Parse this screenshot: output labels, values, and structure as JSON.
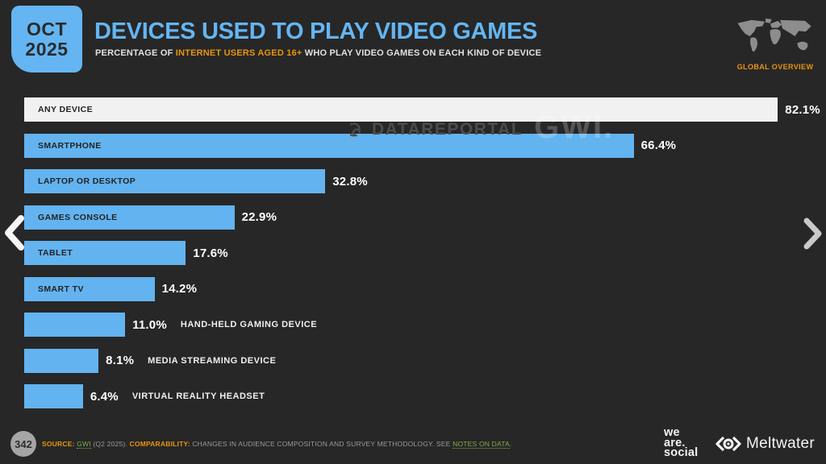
{
  "header": {
    "badge_month": "OCT",
    "badge_year": "2025",
    "title": "DEVICES USED TO PLAY VIDEO GAMES",
    "subtitle_prefix": "PERCENTAGE OF ",
    "subtitle_highlight": "INTERNET USERS AGED 16+",
    "subtitle_suffix": " WHO PLAY VIDEO GAMES ON EACH KIND OF DEVICE",
    "region_label": "GLOBAL OVERVIEW"
  },
  "watermark": {
    "brand": "DATAREPORTAL",
    "partner": "GWI."
  },
  "chart_data": {
    "type": "bar",
    "orientation": "horizontal",
    "title": "DEVICES USED TO PLAY VIDEO GAMES",
    "xlabel": "",
    "ylabel": "",
    "xlim": [
      0,
      85
    ],
    "grid": false,
    "legend": "none",
    "categories": [
      "ANY DEVICE",
      "SMARTPHONE",
      "LAPTOP OR DESKTOP",
      "GAMES CONSOLE",
      "TABLET",
      "SMART TV",
      "HAND-HELD GAMING DEVICE",
      "MEDIA STREAMING DEVICE",
      "VIRTUAL REALITY HEADSET"
    ],
    "values": [
      82.1,
      66.4,
      32.8,
      22.9,
      17.6,
      14.2,
      11.0,
      8.1,
      6.4
    ],
    "value_labels": [
      "82.1%",
      "66.4%",
      "32.8%",
      "22.9%",
      "17.6%",
      "14.2%",
      "11.0%",
      "8.1%",
      "6.4%"
    ],
    "bar_styles": [
      {
        "fill": "#f1f1f1",
        "text": "#232323",
        "label_position": "inside"
      },
      {
        "fill": "#63b3f0",
        "text": "#232323",
        "label_position": "inside"
      },
      {
        "fill": "#63b3f0",
        "text": "#232323",
        "label_position": "inside"
      },
      {
        "fill": "#63b3f0",
        "text": "#232323",
        "label_position": "inside"
      },
      {
        "fill": "#63b3f0",
        "text": "#232323",
        "label_position": "inside"
      },
      {
        "fill": "#63b3f0",
        "text": "#232323",
        "label_position": "inside"
      },
      {
        "fill": "#63b3f0",
        "text": "#232323",
        "label_position": "outside"
      },
      {
        "fill": "#63b3f0",
        "text": "#232323",
        "label_position": "outside"
      },
      {
        "fill": "#63b3f0",
        "text": "#232323",
        "label_position": "outside"
      }
    ]
  },
  "footer": {
    "page_number": "342",
    "source_label": "SOURCE: ",
    "source_link": "GWI",
    "source_mid": " (Q2 2025). ",
    "comparability_label": "COMPARABILITY: ",
    "comparability_text": "CHANGES IN AUDIENCE COMPOSITION AND SURVEY METHODOLOGY. SEE ",
    "notes_link": "NOTES ON DATA",
    "source_end": "."
  },
  "branding": {
    "we_are_social": [
      "we",
      "are.",
      "social"
    ],
    "meltwater": "Meltwater"
  },
  "colors": {
    "background": "#272727",
    "accent_blue": "#64b5f2",
    "accent_orange": "#e8940f",
    "link_green": "#7cb14c",
    "bar_light": "#f1f1f1",
    "bar_blue": "#63b3f0",
    "value_text": "#ffffff"
  }
}
